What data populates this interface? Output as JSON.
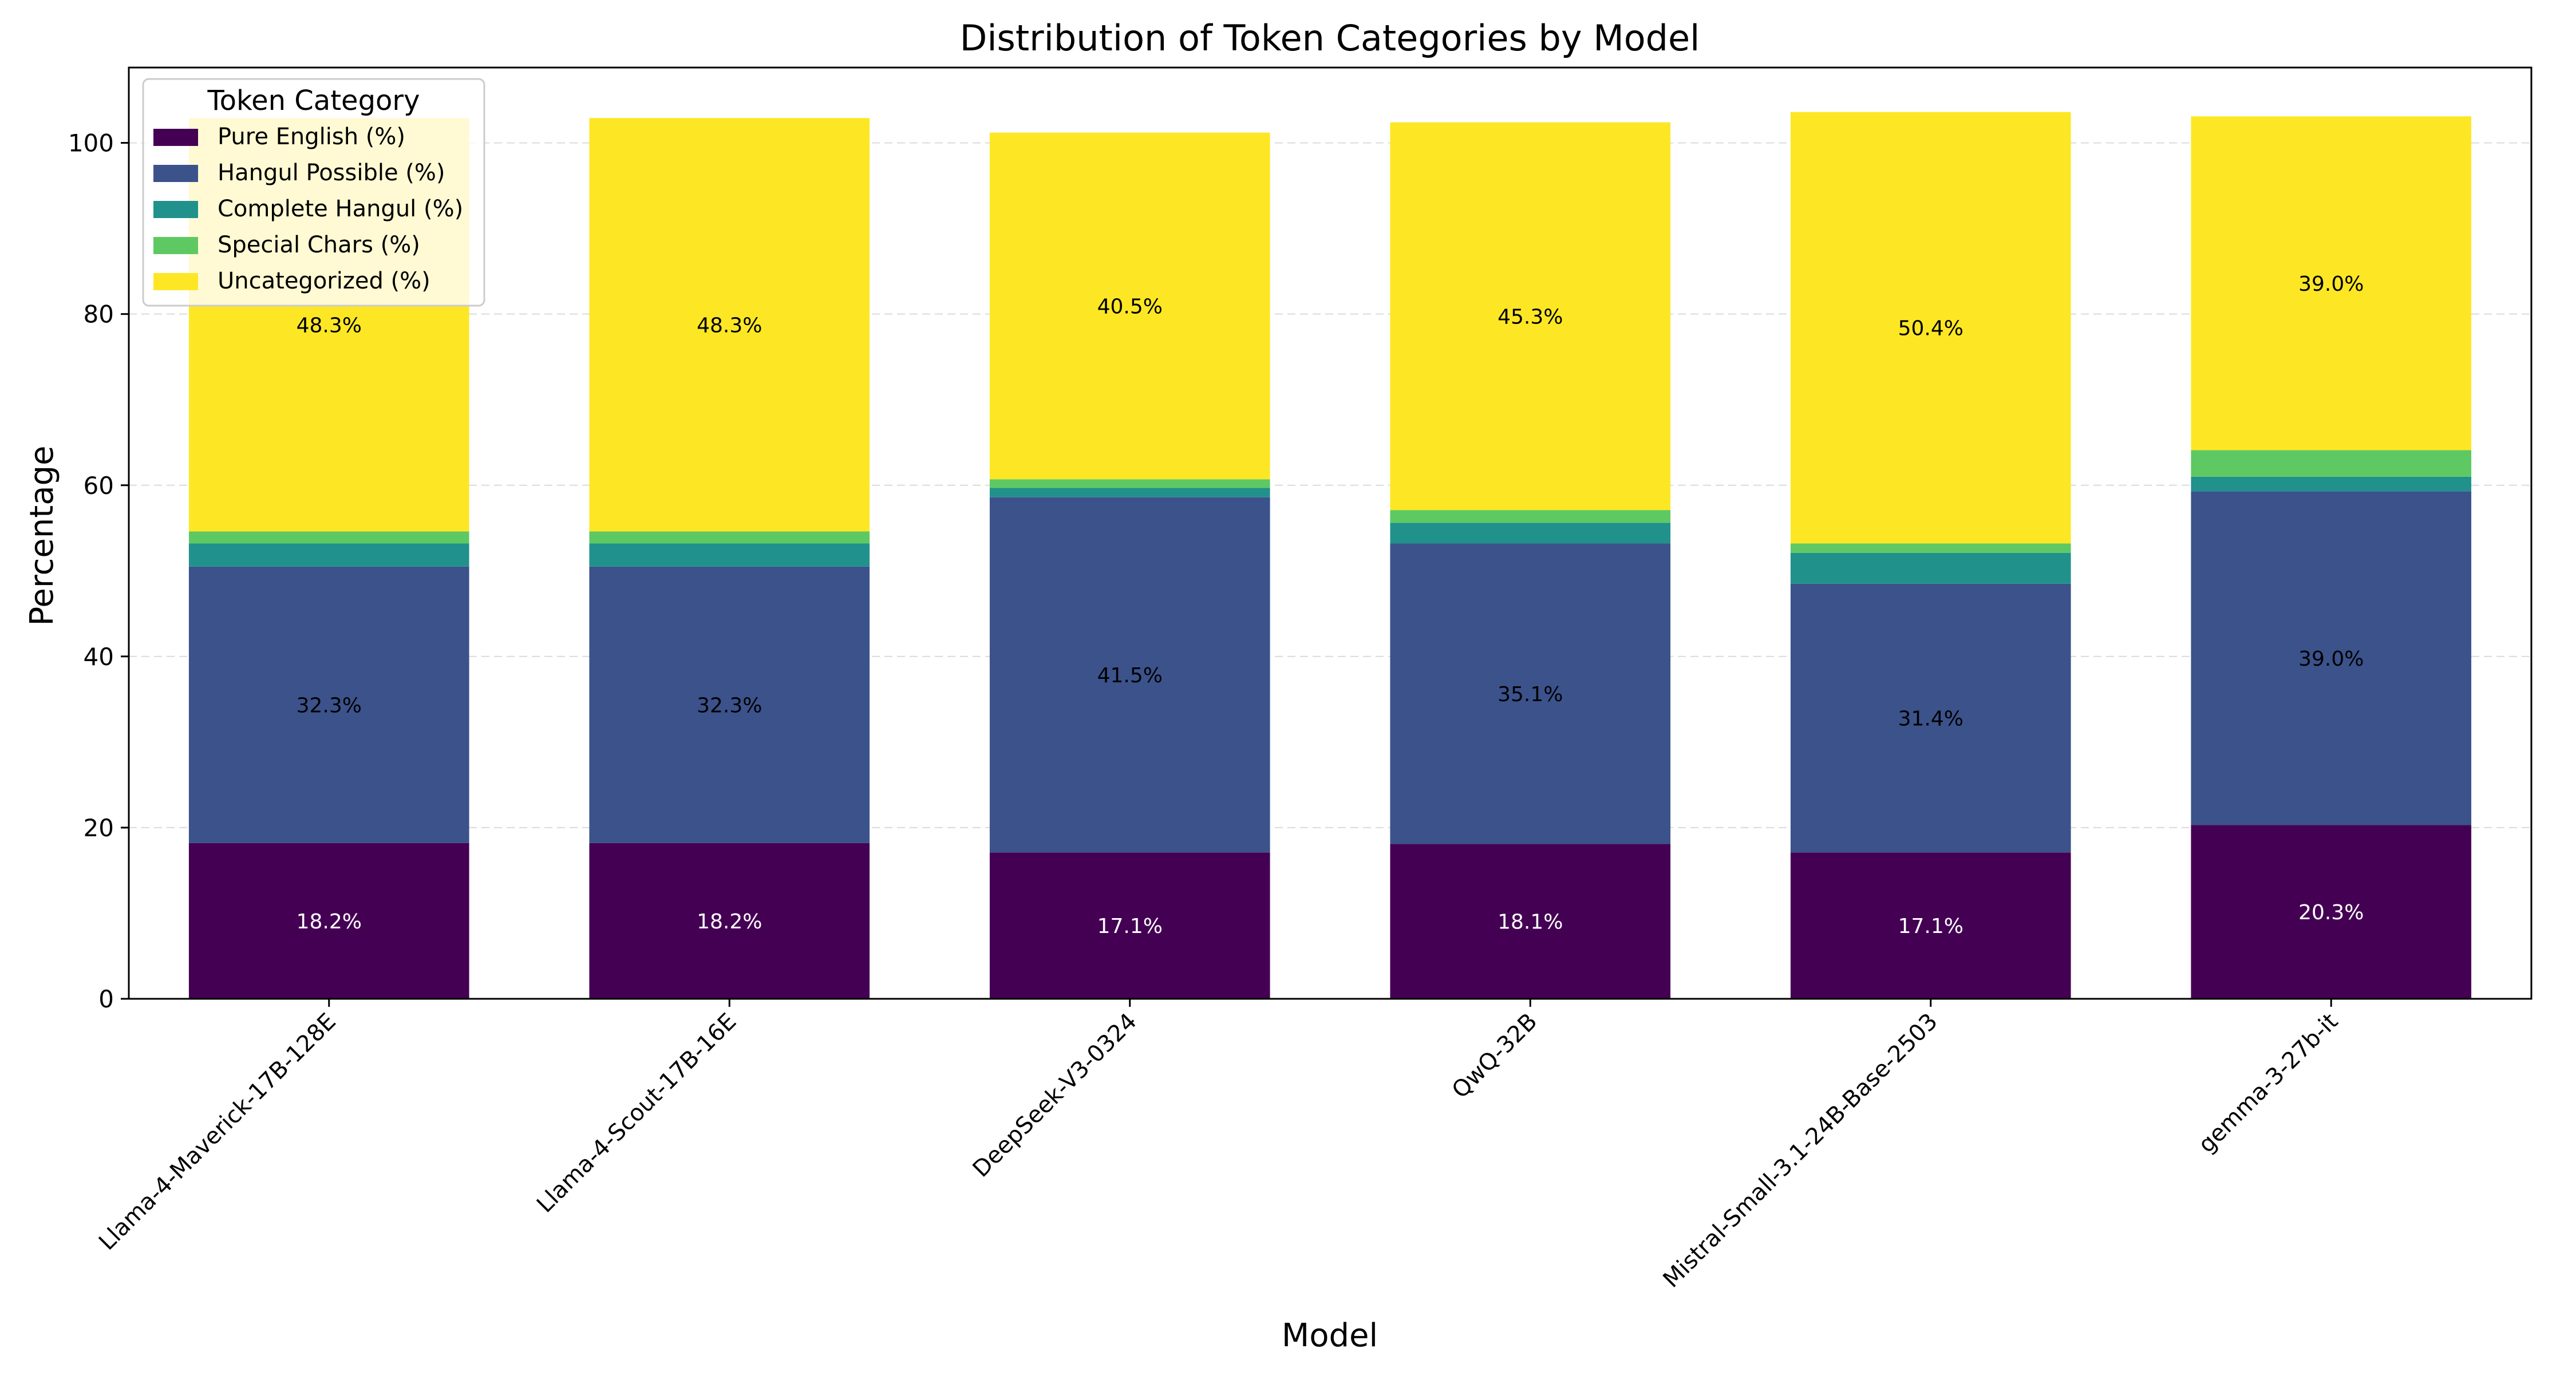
{
  "chart_data": {
    "type": "bar",
    "stacked": true,
    "title": "Distribution of Token Categories by Model",
    "xlabel": "Model",
    "ylabel": "Percentage",
    "ylim": [
      0,
      108.8
    ],
    "yticks": [
      0,
      20,
      40,
      60,
      80,
      100
    ],
    "grid": "y-dashed",
    "categories": [
      "Llama-4-Maverick-17B-128E",
      "Llama-4-Scout-17B-16E",
      "DeepSeek-V3-0324",
      "QwQ-32B",
      "Mistral-Small-3.1-24B-Base-2503",
      "gemma-3-27b-it"
    ],
    "legend": {
      "title": "Token Category",
      "placement": "top-left"
    },
    "series": [
      {
        "name": "Pure English (%)",
        "color": "#440154",
        "values": [
          18.2,
          18.2,
          17.1,
          18.1,
          17.1,
          20.3
        ],
        "labels": [
          "18.2%",
          "18.2%",
          "17.1%",
          "18.1%",
          "17.1%",
          "20.3%"
        ],
        "label_color": "#ffffff"
      },
      {
        "name": "Hangul Possible (%)",
        "color": "#3b528b",
        "values": [
          32.3,
          32.3,
          41.5,
          35.1,
          31.4,
          39.0
        ],
        "labels": [
          "32.3%",
          "32.3%",
          "41.5%",
          "35.1%",
          "31.4%",
          "39.0%"
        ],
        "label_color": "#000000"
      },
      {
        "name": "Complete Hangul (%)",
        "color": "#21918c",
        "values": [
          2.7,
          2.7,
          1.1,
          2.4,
          3.6,
          1.7
        ],
        "labels": [],
        "label_color": "#000000"
      },
      {
        "name": "Special Chars (%)",
        "color": "#5ec962",
        "values": [
          1.4,
          1.4,
          1.0,
          1.5,
          1.1,
          3.1
        ],
        "labels": [],
        "label_color": "#000000"
      },
      {
        "name": "Uncategorized (%)",
        "color": "#fde725",
        "values": [
          48.3,
          48.3,
          40.5,
          45.3,
          50.4,
          39.0
        ],
        "labels": [
          "48.3%",
          "48.3%",
          "40.5%",
          "45.3%",
          "50.4%",
          "39.0%"
        ],
        "label_color": "#000000"
      }
    ]
  }
}
